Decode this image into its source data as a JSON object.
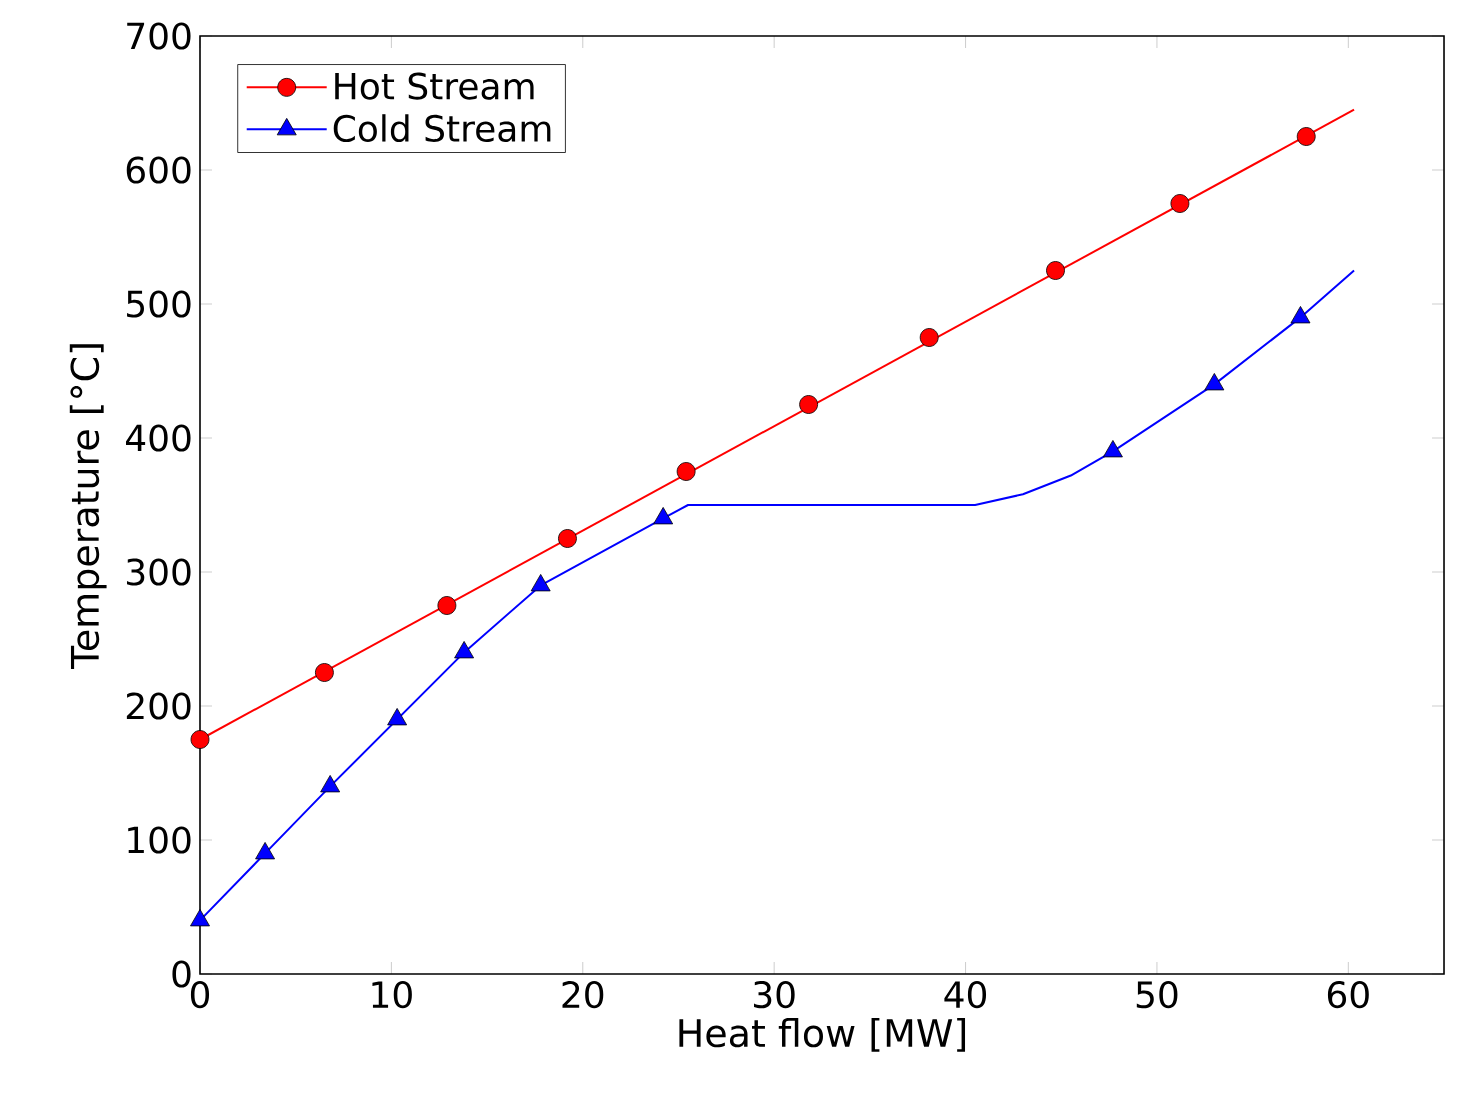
{
  "chart_data": {
    "type": "line",
    "xlabel": "Heat flow [MW]",
    "ylabel": "Temperature [°C]",
    "xlim": [
      0,
      65
    ],
    "ylim": [
      0,
      700
    ],
    "xticks": [
      0,
      10,
      20,
      30,
      40,
      50,
      60
    ],
    "yticks": [
      0,
      100,
      200,
      300,
      400,
      500,
      600,
      700
    ],
    "grid": false,
    "legend": "top left",
    "series": [
      {
        "name": "Hot Stream",
        "color": "#ff0000",
        "marker": "none",
        "x": [
          0,
          60.3
        ],
        "values": [
          175,
          645
        ]
      },
      {
        "type": "scatter",
        "color": "#ff0000",
        "marker": "circle",
        "x": [
          0,
          6.5,
          12.9,
          19.2,
          25.4,
          31.8,
          38.1,
          44.7,
          51.2,
          57.8
        ],
        "values": [
          175,
          225,
          275,
          325,
          375,
          425,
          475,
          525,
          575,
          625
        ]
      },
      {
        "name": "Cold Stream",
        "color": "#0000ff",
        "marker": "none",
        "x": [
          0,
          3.4,
          6.8,
          10.3,
          13.8,
          17.8,
          24.2,
          25.5,
          40.5,
          43,
          45.5,
          47.7,
          53,
          57.5,
          60.3
        ],
        "values": [
          40,
          90,
          140,
          190,
          240,
          290,
          340,
          350,
          350,
          358,
          372,
          390,
          440,
          490,
          525
        ]
      },
      {
        "type": "scatter",
        "color": "#0000ff",
        "marker": "triangle",
        "x": [
          0,
          3.4,
          6.8,
          10.3,
          13.8,
          17.8,
          24.2,
          47.7,
          53,
          57.5
        ],
        "values": [
          40,
          90,
          140,
          190,
          240,
          290,
          340,
          390,
          440,
          490
        ]
      }
    ]
  }
}
